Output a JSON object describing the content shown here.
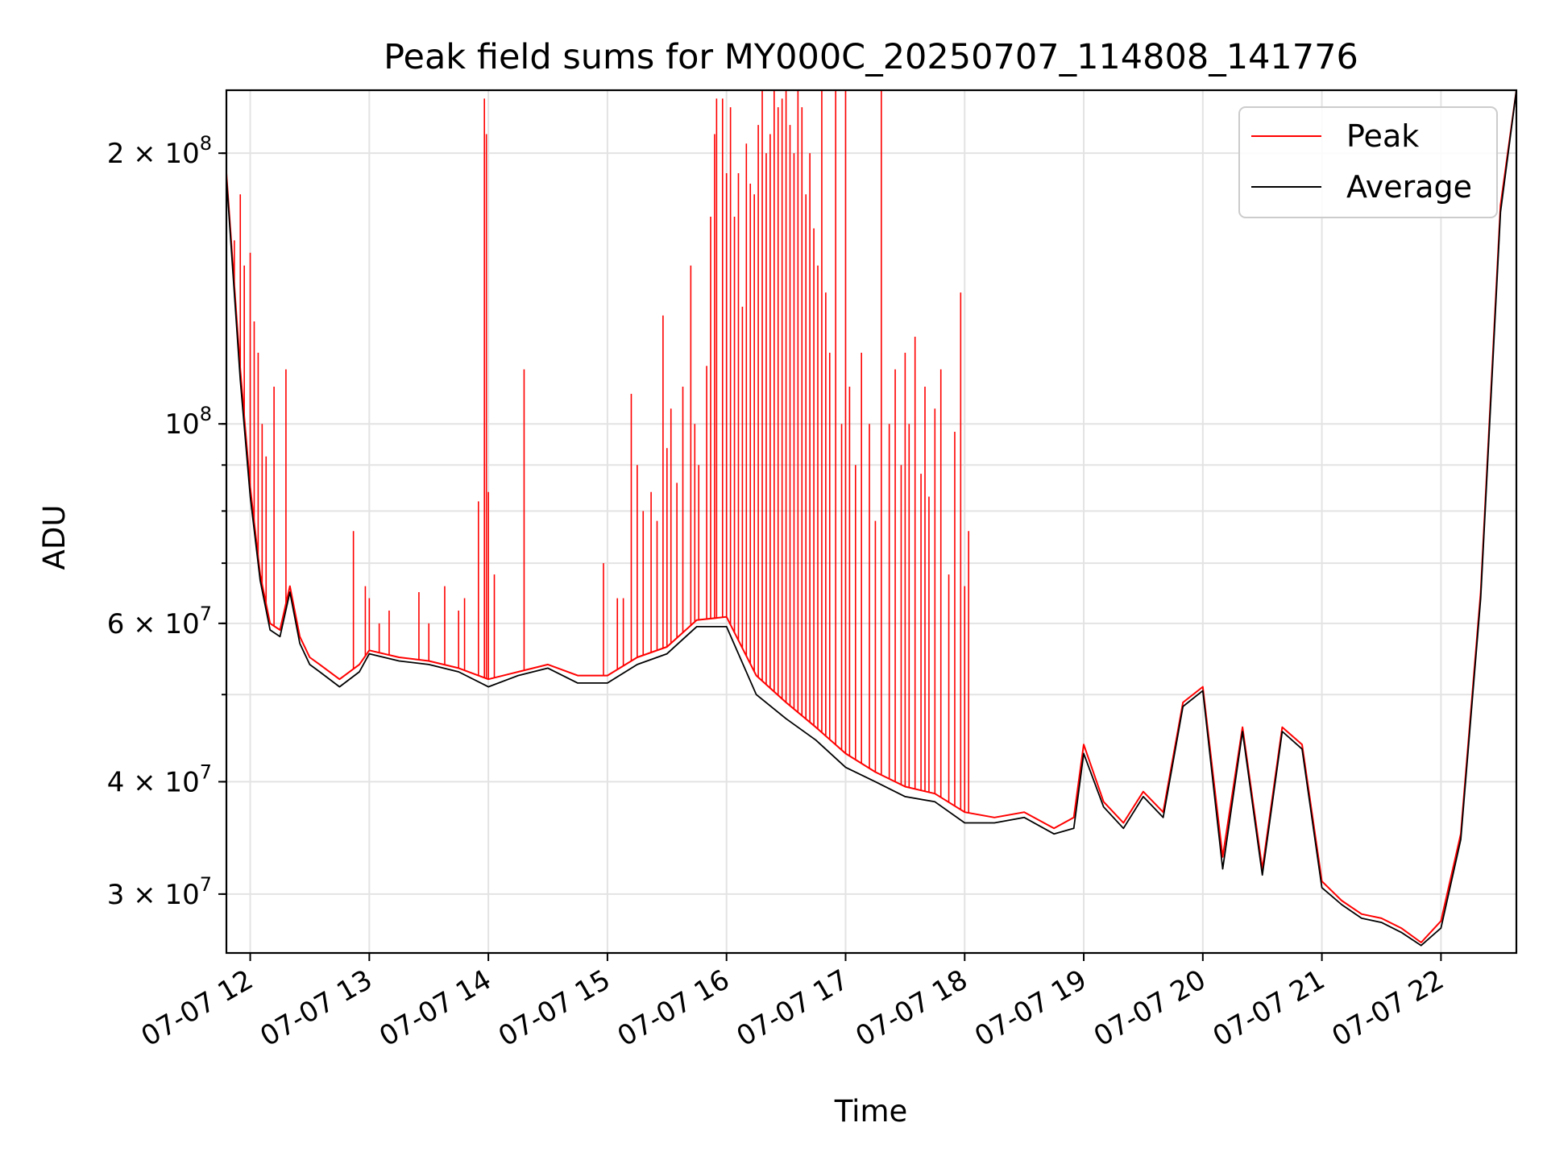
{
  "chart_data": {
    "type": "line",
    "title": "Peak field sums for MY000C_20250707_114808_141776",
    "xlabel": "Time",
    "ylabel": "ADU",
    "yscale": "log",
    "xlim": [
      "07-07 11:48",
      "07-07 22:38"
    ],
    "ylim": [
      25800000,
      235000000
    ],
    "grid": true,
    "legend": "top-right",
    "x_ticks": [
      "07-07 12",
      "07-07 13",
      "07-07 14",
      "07-07 15",
      "07-07 16",
      "07-07 17",
      "07-07 18",
      "07-07 19",
      "07-07 20",
      "07-07 21",
      "07-07 22"
    ],
    "y_ticks": [
      {
        "value": 200000000,
        "base": "2 × 10",
        "exp": "8"
      },
      {
        "value": 100000000,
        "base": "10",
        "exp": "8"
      },
      {
        "value": 60000000,
        "base": "6 × 10",
        "exp": "7"
      },
      {
        "value": 40000000,
        "base": "4 × 10",
        "exp": "7"
      },
      {
        "value": 30000000,
        "base": "3 × 10",
        "exp": "7"
      }
    ],
    "series": [
      {
        "name": "Peak",
        "color": "#ff0000",
        "x": [
          "11:48",
          "11:55",
          "12:00",
          "12:05",
          "12:10",
          "12:15",
          "12:20",
          "12:25",
          "12:30",
          "12:35",
          "12:45",
          "12:55",
          "13:00",
          "13:15",
          "13:30",
          "13:45",
          "14:00",
          "14:15",
          "14:30",
          "14:45",
          "15:00",
          "15:15",
          "15:30",
          "15:45",
          "16:00",
          "16:15",
          "16:30",
          "16:45",
          "17:00",
          "17:15",
          "17:30",
          "17:45",
          "18:00",
          "18:15",
          "18:30",
          "18:45",
          "18:55",
          "19:00",
          "19:10",
          "19:20",
          "19:30",
          "19:40",
          "19:50",
          "20:00",
          "20:10",
          "20:20",
          "20:30",
          "20:40",
          "20:50",
          "21:00",
          "21:10",
          "21:20",
          "21:30",
          "21:40",
          "21:50",
          "22:00",
          "22:10",
          "22:20",
          "22:30",
          "22:38"
        ],
        "values": [
          190000000,
          115000000,
          85000000,
          68000000,
          60000000,
          59000000,
          66000000,
          58000000,
          55000000,
          54000000,
          52000000,
          54000000,
          56000000,
          55000000,
          54500000,
          53500000,
          52000000,
          53000000,
          54000000,
          52500000,
          52500000,
          55000000,
          56500000,
          60500000,
          61000000,
          52500000,
          49000000,
          46000000,
          43000000,
          41000000,
          39500000,
          38800000,
          37000000,
          36500000,
          37000000,
          35500000,
          36500000,
          44000000,
          38000000,
          36000000,
          39000000,
          37000000,
          49000000,
          51000000,
          33000000,
          46000000,
          32000000,
          46000000,
          44000000,
          31000000,
          29500000,
          28500000,
          28200000,
          27500000,
          26500000,
          28000000,
          35000000,
          65000000,
          175000000,
          235000000
        ],
        "spikes": [
          [
            "11:52",
            160000000
          ],
          [
            "11:55",
            180000000
          ],
          [
            "11:57",
            150000000
          ],
          [
            "12:00",
            155000000
          ],
          [
            "12:02",
            130000000
          ],
          [
            "12:04",
            120000000
          ],
          [
            "12:06",
            100000000
          ],
          [
            "12:08",
            92000000
          ],
          [
            "12:12",
            110000000
          ],
          [
            "12:18",
            115000000
          ],
          [
            "12:52",
            76000000
          ],
          [
            "12:58",
            66000000
          ],
          [
            "13:00",
            64000000
          ],
          [
            "13:05",
            60000000
          ],
          [
            "13:10",
            62000000
          ],
          [
            "13:25",
            65000000
          ],
          [
            "13:30",
            60000000
          ],
          [
            "13:38",
            66000000
          ],
          [
            "13:45",
            62000000
          ],
          [
            "13:48",
            64000000
          ],
          [
            "13:55",
            82000000
          ],
          [
            "13:58",
            230000000
          ],
          [
            "13:59",
            210000000
          ],
          [
            "14:00",
            84000000
          ],
          [
            "14:03",
            68000000
          ],
          [
            "14:18",
            115000000
          ],
          [
            "14:58",
            70000000
          ],
          [
            "15:05",
            64000000
          ],
          [
            "15:08",
            64000000
          ],
          [
            "15:12",
            108000000
          ],
          [
            "15:15",
            90000000
          ],
          [
            "15:18",
            80000000
          ],
          [
            "15:22",
            84000000
          ],
          [
            "15:25",
            78000000
          ],
          [
            "15:28",
            132000000
          ],
          [
            "15:30",
            94000000
          ],
          [
            "15:32",
            104000000
          ],
          [
            "15:35",
            86000000
          ],
          [
            "15:38",
            110000000
          ],
          [
            "15:42",
            150000000
          ],
          [
            "15:44",
            100000000
          ],
          [
            "15:46",
            90000000
          ],
          [
            "15:50",
            116000000
          ],
          [
            "15:52",
            170000000
          ],
          [
            "15:54",
            210000000
          ],
          [
            "15:55",
            230000000
          ],
          [
            "15:58",
            230000000
          ],
          [
            "16:00",
            190000000
          ],
          [
            "16:02",
            225000000
          ],
          [
            "16:04",
            170000000
          ],
          [
            "16:06",
            190000000
          ],
          [
            "16:08",
            135000000
          ],
          [
            "16:10",
            205000000
          ],
          [
            "16:12",
            185000000
          ],
          [
            "16:14",
            180000000
          ],
          [
            "16:16",
            215000000
          ],
          [
            "16:18",
            235000000
          ],
          [
            "16:20",
            200000000
          ],
          [
            "16:22",
            210000000
          ],
          [
            "16:24",
            235000000
          ],
          [
            "16:26",
            225000000
          ],
          [
            "16:28",
            230000000
          ],
          [
            "16:30",
            235000000
          ],
          [
            "16:32",
            215000000
          ],
          [
            "16:34",
            200000000
          ],
          [
            "16:36",
            235000000
          ],
          [
            "16:38",
            225000000
          ],
          [
            "16:40",
            180000000
          ],
          [
            "16:42",
            200000000
          ],
          [
            "16:44",
            165000000
          ],
          [
            "16:46",
            150000000
          ],
          [
            "16:48",
            235000000
          ],
          [
            "16:50",
            140000000
          ],
          [
            "16:52",
            120000000
          ],
          [
            "16:55",
            235000000
          ],
          [
            "16:58",
            100000000
          ],
          [
            "17:00",
            235000000
          ],
          [
            "17:02",
            110000000
          ],
          [
            "17:05",
            90000000
          ],
          [
            "17:08",
            120000000
          ],
          [
            "17:12",
            100000000
          ],
          [
            "17:15",
            78000000
          ],
          [
            "17:18",
            235000000
          ],
          [
            "17:22",
            100000000
          ],
          [
            "17:25",
            115000000
          ],
          [
            "17:28",
            90000000
          ],
          [
            "17:30",
            120000000
          ],
          [
            "17:32",
            100000000
          ],
          [
            "17:35",
            125000000
          ],
          [
            "17:38",
            88000000
          ],
          [
            "17:40",
            110000000
          ],
          [
            "17:42",
            83000000
          ],
          [
            "17:45",
            104000000
          ],
          [
            "17:48",
            115000000
          ],
          [
            "17:52",
            68000000
          ],
          [
            "17:55",
            98000000
          ],
          [
            "17:58",
            140000000
          ],
          [
            "18:00",
            66000000
          ],
          [
            "18:02",
            76000000
          ]
        ]
      },
      {
        "name": "Average",
        "color": "#000000",
        "x": [
          "11:48",
          "11:55",
          "12:00",
          "12:05",
          "12:10",
          "12:15",
          "12:20",
          "12:25",
          "12:30",
          "12:35",
          "12:45",
          "12:55",
          "13:00",
          "13:15",
          "13:30",
          "13:45",
          "14:00",
          "14:15",
          "14:30",
          "14:45",
          "15:00",
          "15:15",
          "15:30",
          "15:45",
          "16:00",
          "16:15",
          "16:30",
          "16:45",
          "17:00",
          "17:15",
          "17:30",
          "17:45",
          "18:00",
          "18:15",
          "18:30",
          "18:45",
          "18:55",
          "19:00",
          "19:10",
          "19:20",
          "19:30",
          "19:40",
          "19:50",
          "20:00",
          "20:10",
          "20:20",
          "20:30",
          "20:40",
          "20:50",
          "21:00",
          "21:10",
          "21:20",
          "21:30",
          "21:40",
          "21:50",
          "22:00",
          "22:10",
          "22:20",
          "22:30",
          "22:38"
        ],
        "values": [
          188000000,
          112000000,
          83000000,
          67000000,
          59000000,
          58000000,
          65000000,
          57000000,
          54000000,
          53000000,
          51000000,
          53000000,
          55500000,
          54500000,
          54000000,
          53000000,
          51000000,
          52500000,
          53500000,
          51500000,
          51500000,
          54000000,
          55500000,
          59500000,
          59500000,
          50000000,
          47000000,
          44500000,
          41500000,
          40000000,
          38500000,
          38000000,
          36000000,
          36000000,
          36500000,
          35000000,
          35500000,
          43000000,
          37500000,
          35500000,
          38500000,
          36500000,
          48500000,
          50500000,
          32000000,
          45500000,
          31500000,
          45500000,
          43500000,
          30500000,
          29200000,
          28200000,
          27900000,
          27200000,
          26300000,
          27500000,
          34500000,
          64000000,
          172000000,
          235000000
        ]
      }
    ]
  }
}
